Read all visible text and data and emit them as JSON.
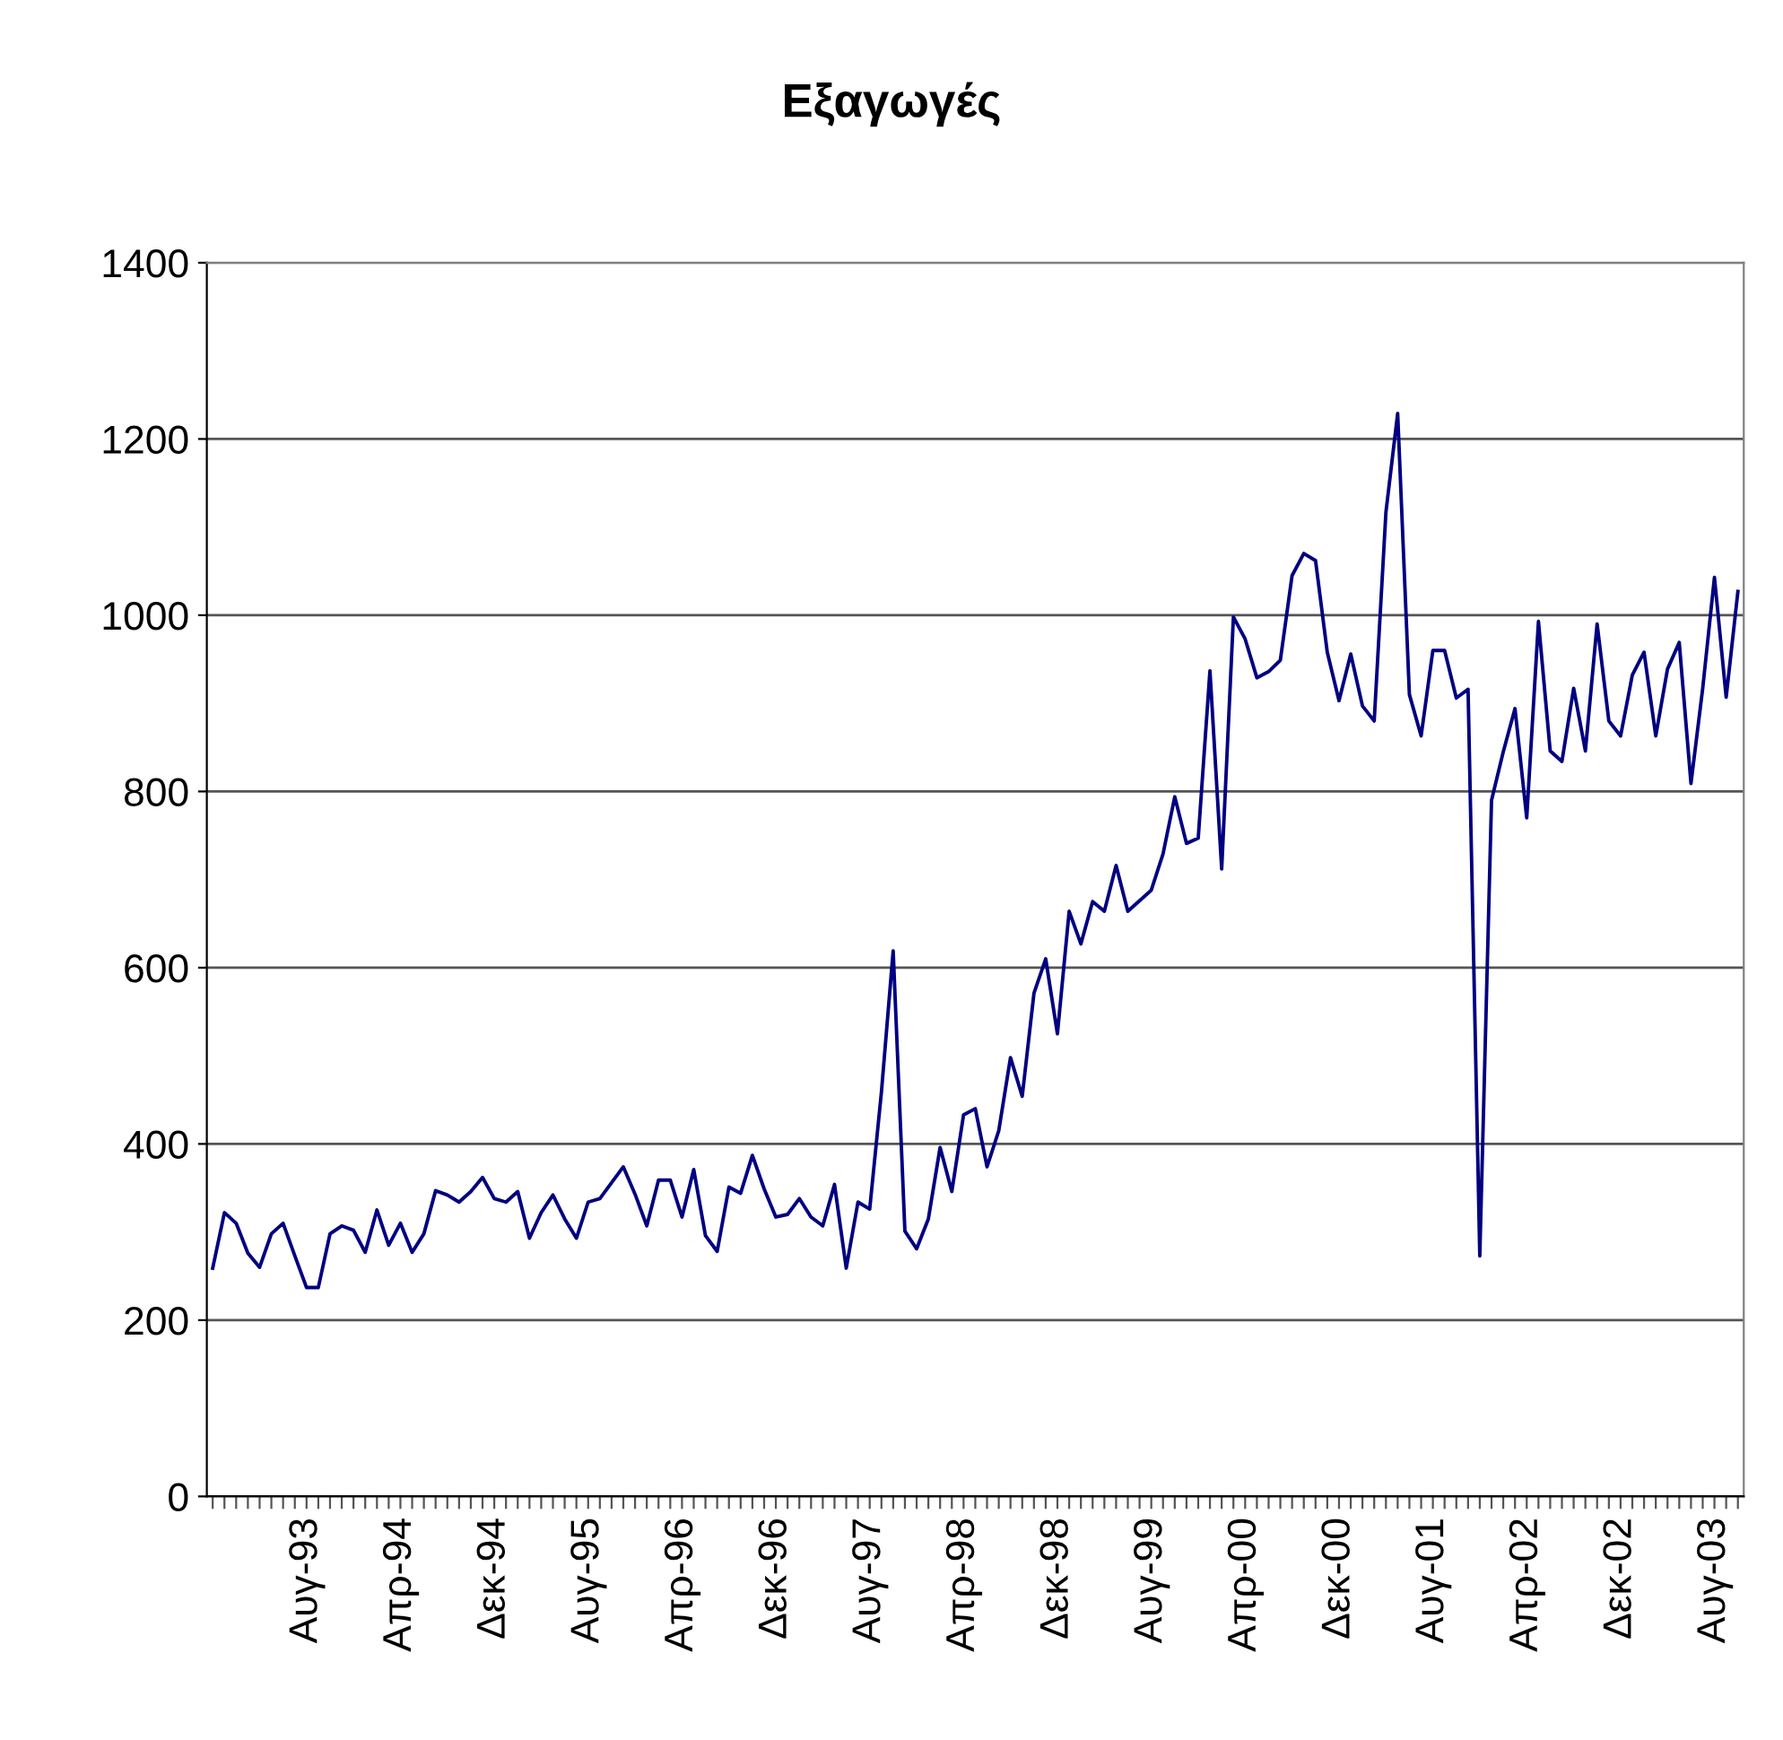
{
  "chart_data": {
    "type": "line",
    "title": "Εξαγωγές",
    "categories": [
      null,
      null,
      null,
      null,
      null,
      null,
      null,
      null,
      "Αυγ-93",
      null,
      null,
      null,
      null,
      null,
      null,
      null,
      "Απρ-94",
      null,
      null,
      null,
      null,
      null,
      null,
      null,
      "Δεκ-94",
      null,
      null,
      null,
      null,
      null,
      null,
      null,
      "Αυγ-95",
      null,
      null,
      null,
      null,
      null,
      null,
      null,
      "Απρ-96",
      null,
      null,
      null,
      null,
      null,
      null,
      null,
      "Δεκ-96",
      null,
      null,
      null,
      null,
      null,
      null,
      null,
      "Αυγ-97",
      null,
      null,
      null,
      null,
      null,
      null,
      null,
      "Απρ-98",
      null,
      null,
      null,
      null,
      null,
      null,
      null,
      "Δεκ-98",
      null,
      null,
      null,
      null,
      null,
      null,
      null,
      "Αυγ-99",
      null,
      null,
      null,
      null,
      null,
      null,
      null,
      "Απρ-00",
      null,
      null,
      null,
      null,
      null,
      null,
      null,
      "Δεκ-00",
      null,
      null,
      null,
      null,
      null,
      null,
      null,
      "Αυγ-01",
      null,
      null,
      null,
      null,
      null,
      null,
      null,
      "Απρ-02",
      null,
      null,
      null,
      null,
      null,
      null,
      null,
      "Δεκ-02",
      null,
      null,
      null,
      null,
      null,
      null,
      null,
      "Αυγ-03",
      null,
      null
    ],
    "series": [
      {
        "color": "#000080",
        "values": [
          259,
          322,
          310,
          276,
          260,
          298,
          310,
          273,
          237,
          237,
          298,
          307,
          302,
          277,
          325,
          285,
          310,
          277,
          298,
          347,
          342,
          334,
          346,
          362,
          338,
          334,
          346,
          293,
          322,
          342,
          315,
          293,
          334,
          338,
          356,
          374,
          343,
          307,
          359,
          359,
          317,
          371,
          296,
          278,
          351,
          344,
          387,
          349,
          317,
          320,
          338,
          317,
          307,
          354,
          259,
          334,
          326,
          459,
          619,
          301,
          281,
          315,
          396,
          346,
          433,
          440,
          374,
          415,
          498,
          454,
          571,
          610,
          525,
          664,
          627,
          675,
          664,
          716,
          664,
          676,
          688,
          729,
          794,
          741,
          747,
          937,
          712,
          998,
          973,
          929,
          936,
          949,
          1045,
          1070,
          1062,
          958,
          903,
          956,
          897,
          880,
          1117,
          1229,
          910,
          863,
          960,
          960,
          906,
          916,
          273,
          790,
          845,
          894,
          770,
          993,
          846,
          834,
          917,
          846,
          990,
          880,
          863,
          932,
          958,
          863,
          939,
          969,
          809,
          917,
          1043,
          907,
          1027
        ]
      }
    ],
    "ylim": [
      0,
      1400
    ],
    "yticks": [
      0,
      200,
      400,
      600,
      800,
      1000,
      1200,
      1400
    ],
    "grid": "y"
  }
}
